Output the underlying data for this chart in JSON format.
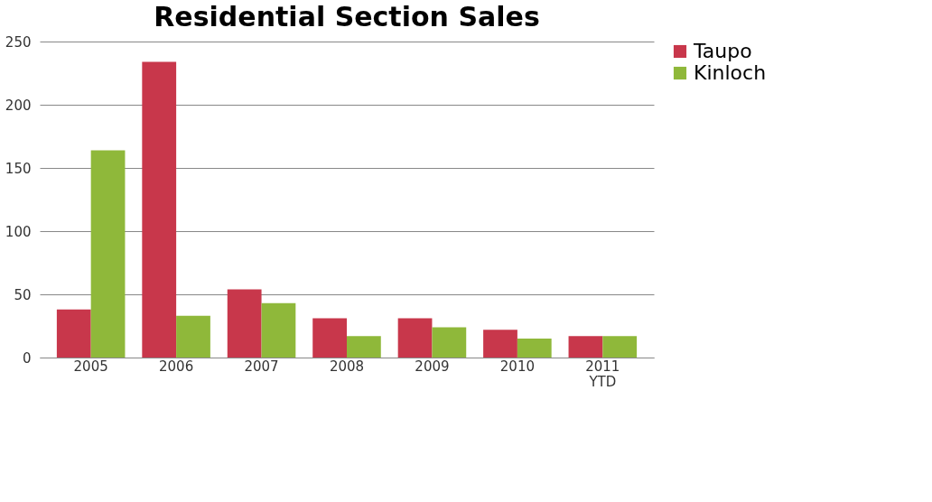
{
  "chart_data": {
    "type": "bar",
    "title": "Residential Section Sales",
    "categories": [
      "2005",
      "2006",
      "2007",
      "2008",
      "2009",
      "2010",
      "2011 YTD"
    ],
    "series": [
      {
        "name": "Taupo",
        "color": "#c8374b",
        "values": [
          38,
          234,
          54,
          31,
          31,
          22,
          17
        ]
      },
      {
        "name": "Kinloch",
        "color": "#8fb83a",
        "values": [
          164,
          33,
          43,
          17,
          24,
          15,
          17
        ]
      }
    ],
    "ylim": [
      0,
      250
    ],
    "yticks": [
      0,
      50,
      100,
      150,
      200,
      250
    ],
    "grid": "y",
    "legend": "right"
  }
}
